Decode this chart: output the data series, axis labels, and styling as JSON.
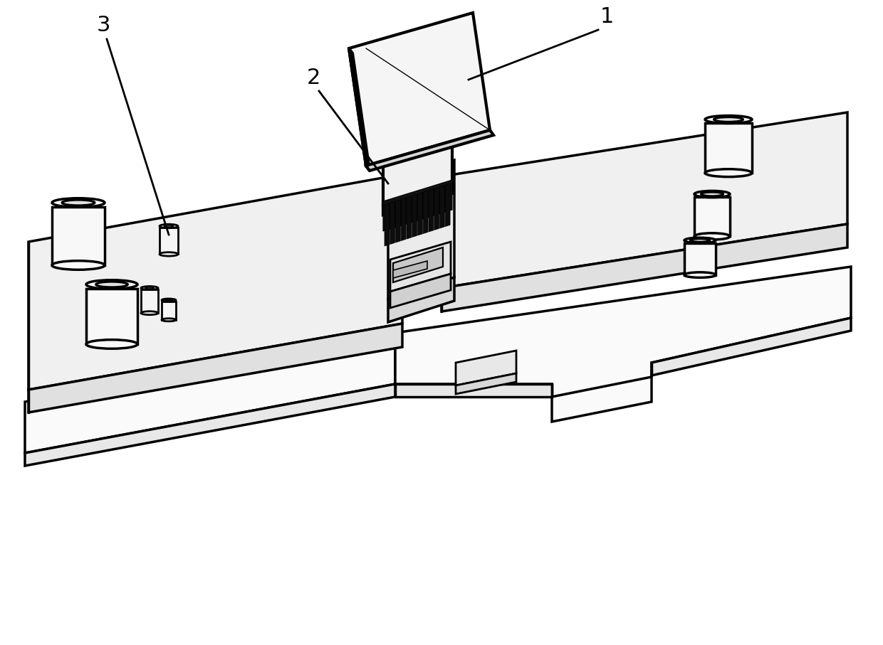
{
  "background_color": "#ffffff",
  "line_color": "#000000",
  "line_width": 2.0,
  "label_1": "1",
  "label_2": "2",
  "label_3": "3"
}
